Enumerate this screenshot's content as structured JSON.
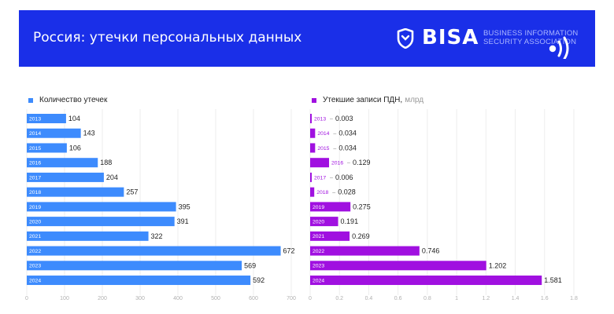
{
  "header": {
    "title": "Россия: утечки персональных данных",
    "logo_text": "BISA",
    "logo_sub_line1": "BUSINESS INFORMATION",
    "logo_sub_line2": "SECURITY ASSOCIATION"
  },
  "colors": {
    "banner": "#1a2fe8",
    "left_bars": "#3d8bfd",
    "right_bars": "#a010e0"
  },
  "chart_data": [
    {
      "type": "bar",
      "orientation": "horizontal",
      "legend": "Количество утечек",
      "legend_unit": "",
      "color": "#3d8bfd",
      "categories": [
        "2013",
        "2014",
        "2015",
        "2016",
        "2017",
        "2018",
        "2019",
        "2020",
        "2021",
        "2022",
        "2023",
        "2024"
      ],
      "values": [
        104,
        143,
        106,
        188,
        204,
        257,
        395,
        391,
        322,
        672,
        569,
        592
      ],
      "value_labels": [
        "104",
        "143",
        "106",
        "188",
        "204",
        "257",
        "395",
        "391",
        "322",
        "672",
        "569",
        "592"
      ],
      "xlim": [
        0,
        700
      ],
      "xticks": [
        0,
        100,
        200,
        300,
        400,
        500,
        600,
        700
      ],
      "xtick_labels": [
        "0",
        "100",
        "200",
        "300",
        "400",
        "500",
        "600",
        "700"
      ],
      "grid": true,
      "legend_position": "top-left"
    },
    {
      "type": "bar",
      "orientation": "horizontal",
      "legend": "Утекшие записи ПДН,",
      "legend_unit": "млрд",
      "color": "#a010e0",
      "categories": [
        "2013",
        "2014",
        "2015",
        "2016",
        "2017",
        "2018",
        "2019",
        "2020",
        "2021",
        "2022",
        "2023",
        "2024"
      ],
      "values": [
        0.003,
        0.034,
        0.034,
        0.129,
        0.006,
        0.028,
        0.275,
        0.191,
        0.269,
        0.746,
        1.202,
        1.581
      ],
      "value_labels": [
        "0.003",
        "0.034",
        "0.034",
        "0.129",
        "0.006",
        "0.028",
        "0.275",
        "0.191",
        "0.269",
        "0.746",
        "1.202",
        "1.581"
      ],
      "xlim": [
        0,
        1.8
      ],
      "xticks": [
        0,
        0.2,
        0.4,
        0.6,
        0.8,
        1,
        1.2,
        1.4,
        1.6,
        1.8
      ],
      "xtick_labels": [
        "0",
        "0.2",
        "0.4",
        "0.6",
        "0.8",
        "1",
        "1.2",
        "1.4",
        "1.6",
        "1.8"
      ],
      "grid": true,
      "legend_position": "top-left"
    }
  ]
}
